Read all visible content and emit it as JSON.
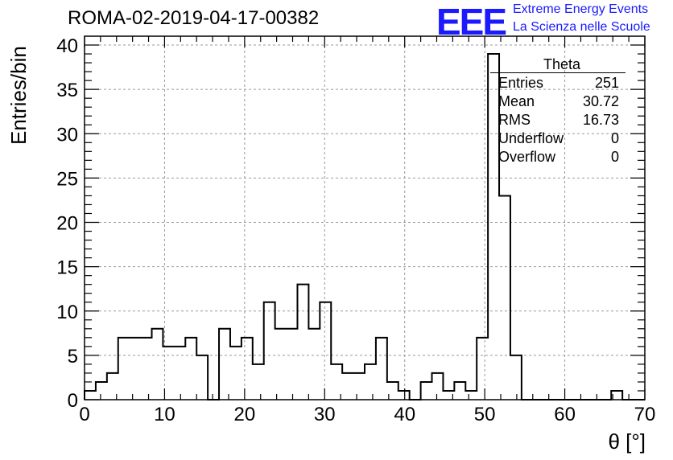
{
  "header": {
    "title": "ROMA-02-2019-04-17-00382",
    "logo_mark": "EEE",
    "logo_line1": "Extreme Energy Events",
    "logo_line2": "La Scienza nelle Scuole"
  },
  "stats_box": {
    "title": "Theta",
    "rows": [
      {
        "label": "Entries",
        "value": "251"
      },
      {
        "label": "Mean",
        "value": "30.72"
      },
      {
        "label": "RMS",
        "value": "16.73"
      },
      {
        "label": "Underflow",
        "value": "0"
      },
      {
        "label": "Overflow",
        "value": "0"
      }
    ]
  },
  "chart_data": {
    "type": "bar",
    "title": "ROMA-02-2019-04-17-00382",
    "xlabel": "θ [°]",
    "ylabel": "Entries/bin",
    "xlim": [
      0,
      70
    ],
    "ylim": [
      0,
      41
    ],
    "bin_width": 1.4,
    "x_ticks": [
      0,
      10,
      20,
      30,
      40,
      50,
      60,
      70
    ],
    "y_ticks": [
      0,
      5,
      10,
      15,
      20,
      25,
      30,
      35,
      40
    ],
    "grid": true,
    "legend": "none",
    "values": [
      1,
      2,
      3,
      7,
      7,
      7,
      8,
      6,
      6,
      7,
      5,
      0,
      8,
      6,
      7,
      4,
      11,
      8,
      8,
      13,
      8,
      11,
      4,
      3,
      3,
      4,
      7,
      2,
      1,
      0,
      2,
      3,
      1,
      2,
      1,
      7,
      39,
      23,
      5,
      0,
      0,
      0,
      0,
      0,
      0,
      0,
      0,
      1,
      0,
      0
    ],
    "line_color": "#000000",
    "grid_color": "#999999"
  }
}
